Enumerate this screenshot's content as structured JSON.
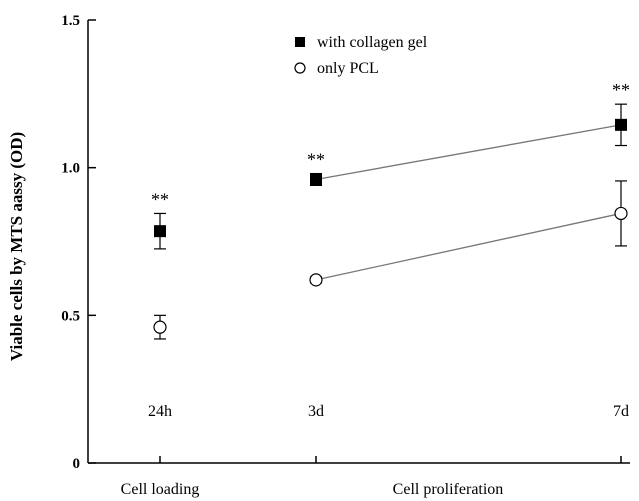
{
  "chart_data": {
    "type": "scatter",
    "title": "",
    "ylabel": "Viable cells by MTS aassy (OD)",
    "xlabel": "",
    "ylim": [
      0,
      1.5
    ],
    "yticks": [
      {
        "value": 0,
        "label": "0"
      },
      {
        "value": 0.5,
        "label": "0.5"
      },
      {
        "value": 1.0,
        "label": "1.0"
      },
      {
        "value": 1.5,
        "label": "1.5"
      }
    ],
    "categories": [
      "24h",
      "3d",
      "7d"
    ],
    "group_labels": [
      {
        "label": "Cell loading",
        "categories": [
          "24h"
        ]
      },
      {
        "label": "Cell proliferation",
        "categories": [
          "3d",
          "7d"
        ]
      }
    ],
    "legend_position": "top-center",
    "series": [
      {
        "name": "with collagen gel",
        "marker": "filled-square",
        "color": "#000000",
        "values": [
          0.785,
          0.96,
          1.145
        ],
        "errors": [
          0.06,
          0.02,
          0.07
        ],
        "connect_from_index": 1
      },
      {
        "name": "only PCL",
        "marker": "open-circle",
        "color": "#000000",
        "values": [
          0.46,
          0.62,
          0.845
        ],
        "errors": [
          0.04,
          0.01,
          0.11
        ],
        "connect_from_index": 1
      }
    ],
    "annotations": [
      {
        "category": "24h",
        "text": "**"
      },
      {
        "category": "3d",
        "text": "**"
      },
      {
        "category": "7d",
        "text": "**"
      }
    ],
    "grid": false
  }
}
